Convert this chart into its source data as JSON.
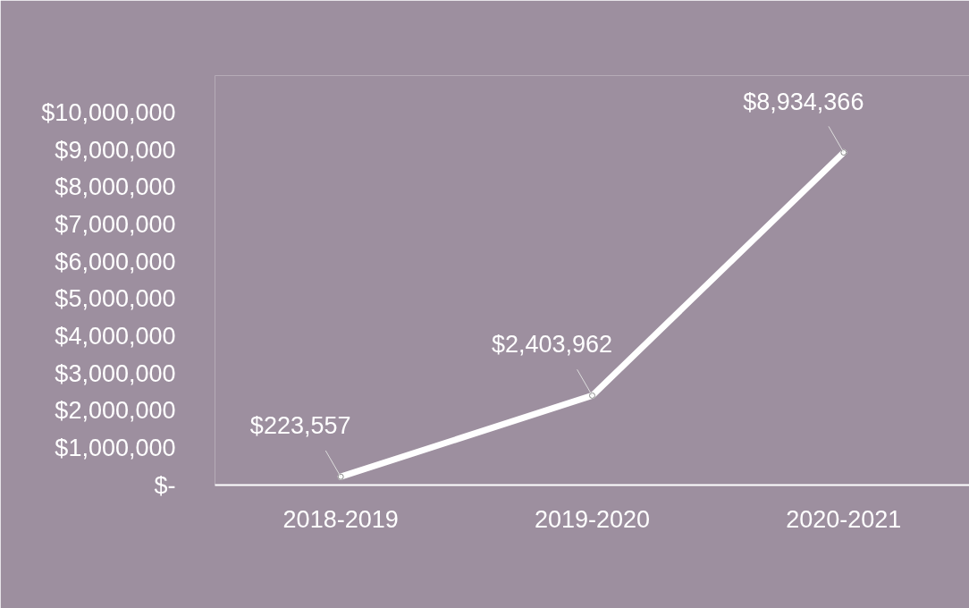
{
  "chart_data": {
    "type": "line",
    "categories": [
      "2018-2019",
      "2019-2020",
      "2020-2021"
    ],
    "series": [
      {
        "color": "#ffffff",
        "values": [
          223557,
          2403962,
          8934366
        ],
        "value_labels": [
          "$223,557",
          "$2,403,962",
          "$8,934,366"
        ]
      }
    ],
    "ylim": [
      0,
      11000000
    ],
    "yticks": [
      {
        "value": 0,
        "label": "$-"
      },
      {
        "value": 1000000,
        "label": "$1,000,000"
      },
      {
        "value": 2000000,
        "label": "$2,000,000"
      },
      {
        "value": 3000000,
        "label": "$3,000,000"
      },
      {
        "value": 4000000,
        "label": "$4,000,000"
      },
      {
        "value": 5000000,
        "label": "$5,000,000"
      },
      {
        "value": 6000000,
        "label": "$6,000,000"
      },
      {
        "value": 7000000,
        "label": "$7,000,000"
      },
      {
        "value": 8000000,
        "label": "$8,000,000"
      },
      {
        "value": 9000000,
        "label": "$9,000,000"
      },
      {
        "value": 10000000,
        "label": "$10,000,000"
      }
    ],
    "grid": false,
    "marker": "circle",
    "line_style": "solid"
  }
}
